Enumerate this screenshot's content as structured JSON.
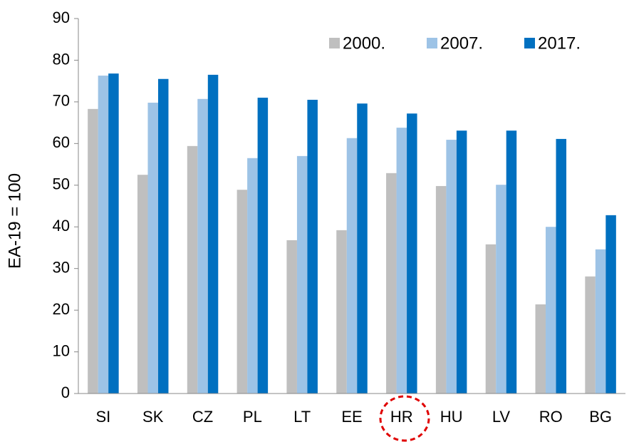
{
  "chart_data": {
    "type": "bar",
    "ylabel": "EA-19 = 100",
    "categories": [
      "SI",
      "SK",
      "CZ",
      "PL",
      "LT",
      "EE",
      "HR",
      "HU",
      "LV",
      "RO",
      "BG"
    ],
    "series": [
      {
        "name": "2000.",
        "color": "#bfbfbf",
        "values": [
          68.3,
          52.5,
          59.4,
          48.9,
          36.8,
          39.2,
          52.9,
          49.8,
          35.8,
          21.4,
          28.1
        ]
      },
      {
        "name": "2007.",
        "color": "#9dc3e6",
        "values": [
          76.3,
          69.8,
          70.7,
          56.5,
          57,
          61.3,
          63.8,
          60.9,
          50.1,
          40,
          34.6
        ]
      },
      {
        "name": "2017.",
        "color": "#0070c0",
        "values": [
          76.8,
          75.5,
          76.5,
          71,
          70.5,
          69.6,
          67.2,
          63.1,
          63.1,
          61.1,
          42.8
        ]
      }
    ],
    "ylim": [
      0,
      90
    ],
    "yticks": [
      0,
      10,
      20,
      30,
      40,
      50,
      60,
      70,
      80,
      90
    ],
    "legend": "top-right"
  }
}
